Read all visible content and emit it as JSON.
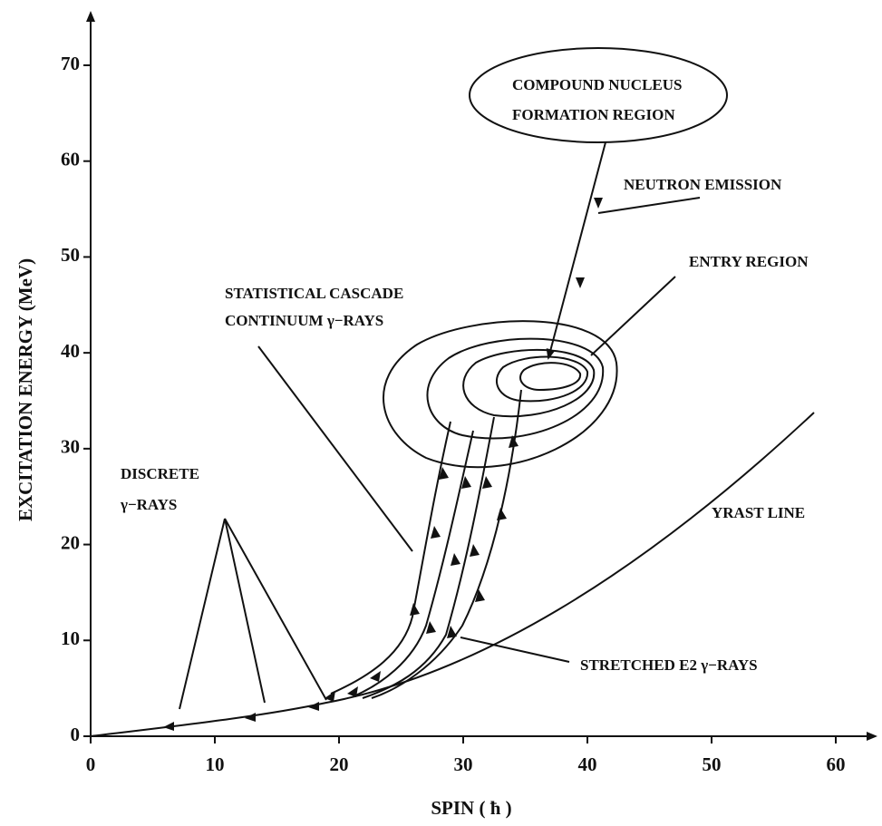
{
  "axes": {
    "x_label": "SPIN ( ħ )",
    "y_label": "EXCITATION ENERGY (MeV)",
    "xticks": [
      0,
      10,
      20,
      30,
      40,
      50,
      60
    ],
    "yticks": [
      0,
      10,
      20,
      30,
      40,
      50,
      60,
      70
    ]
  },
  "annotations": {
    "compound": [
      "COMPOUND NUCLEUS",
      "FORMATION REGION"
    ],
    "neutron": "NEUTRON EMISSION",
    "entry": "ENTRY REGION",
    "statistical": [
      "STATISTICAL CASCADE",
      "CONTINUUM  γ−RAYS"
    ],
    "discrete": [
      "DISCRETE",
      "γ−RAYS"
    ],
    "yrast": "YRAST LINE",
    "stretched": "STRETCHED E2 γ−RAYS"
  }
}
